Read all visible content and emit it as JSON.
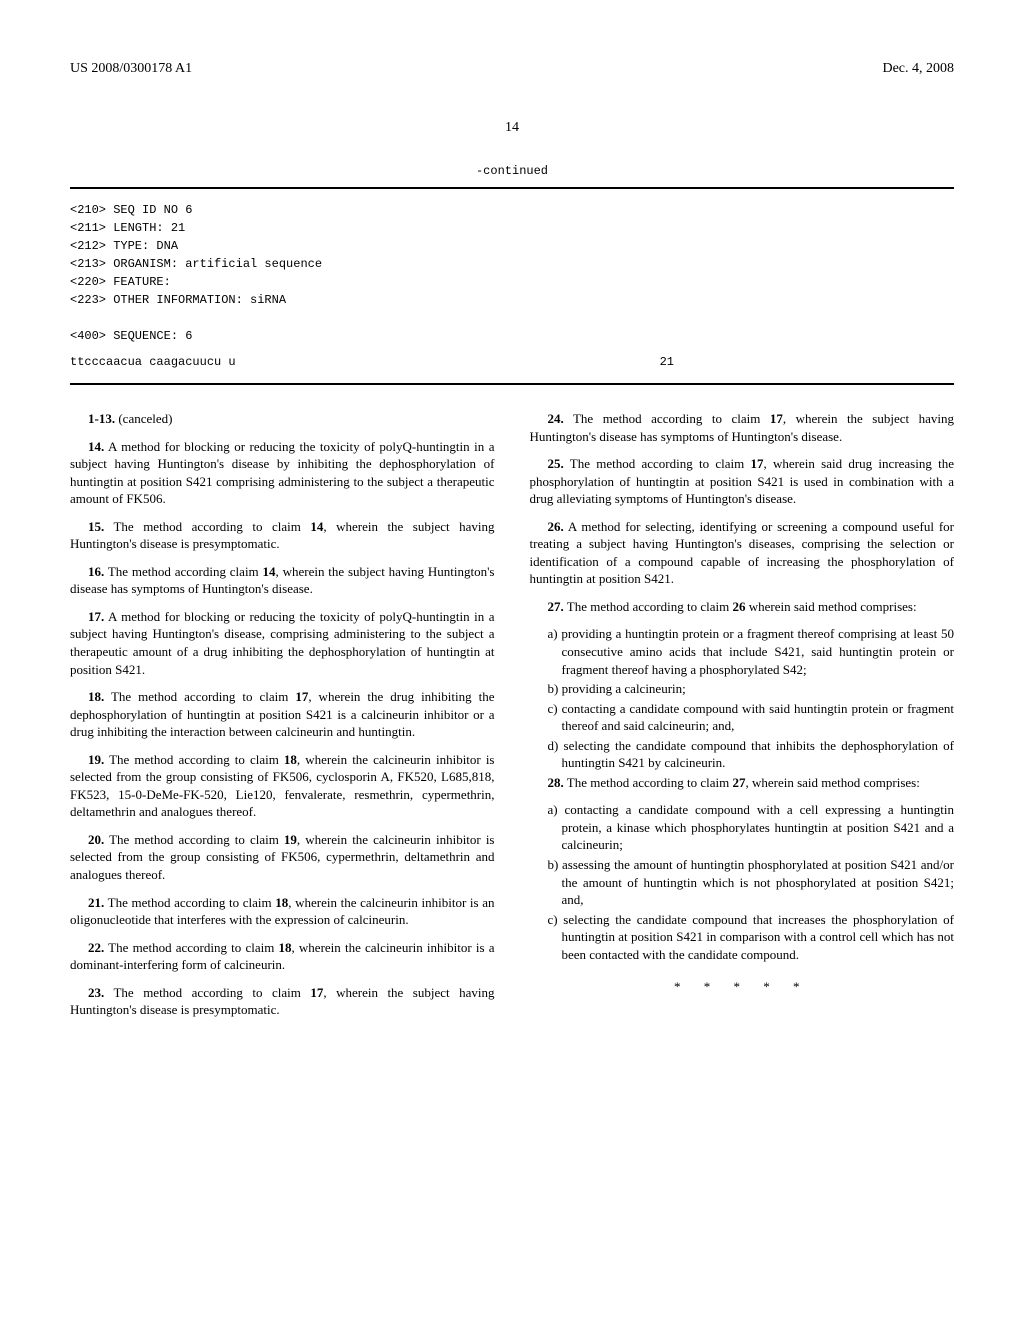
{
  "header": {
    "publication_number": "US 2008/0300178 A1",
    "date": "Dec. 4, 2008"
  },
  "page_number": "14",
  "continued_label": "-continued",
  "sequence": {
    "lines": [
      "<210> SEQ ID NO 6",
      "<211> LENGTH: 21",
      "<212> TYPE: DNA",
      "<213> ORGANISM: artificial sequence",
      "<220> FEATURE:",
      "<223> OTHER INFORMATION: siRNA",
      "",
      "<400> SEQUENCE: 6"
    ],
    "seq_text": "ttcccaacua caagacuucu u",
    "seq_length": "21"
  },
  "left_column": {
    "claims": [
      {
        "num": "1-13.",
        "text": " (canceled)"
      },
      {
        "num": "14.",
        "text": " A method for blocking or reducing the toxicity of polyQ-huntingtin in a subject having Huntington's disease by inhibiting the dephosphorylation of huntingtin at position S421 comprising administering to the subject a therapeutic amount of FK506."
      },
      {
        "num": "15.",
        "text": " The method according to claim 14, wherein the subject having Huntington's disease is presymptomatic."
      },
      {
        "num": "16.",
        "text": " The method according claim 14, wherein the subject having Huntington's disease has symptoms of Huntington's disease."
      },
      {
        "num": "17.",
        "text": " A method for blocking or reducing the toxicity of polyQ-huntingtin in a subject having Huntington's disease, comprising administering to the subject a therapeutic amount of a drug inhibiting the dephosphorylation of huntingtin at position S421."
      },
      {
        "num": "18.",
        "text": " The method according to claim 17, wherein the drug inhibiting the dephosphorylation of huntingtin at position S421 is a calcineurin inhibitor or a drug inhibiting the interaction between calcineurin and huntingtin."
      },
      {
        "num": "19.",
        "text": " The method according to claim 18, wherein the calcineurin inhibitor is selected from the group consisting of FK506, cyclosporin A, FK520, L685,818, FK523, 15-0-DeMe-FK-520, Lie120, fenvalerate, resmethrin, cypermethrin, deltamethrin and analogues thereof."
      },
      {
        "num": "20.",
        "text": " The method according to claim 19, wherein the calcineurin inhibitor is selected from the group consisting of FK506, cypermethrin, deltamethrin and analogues thereof."
      },
      {
        "num": "21.",
        "text": " The method according to claim 18, wherein the calcineurin inhibitor is an oligonucleotide that interferes with the expression of calcineurin."
      },
      {
        "num": "22.",
        "text": " The method according to claim 18, wherein the calcineurin inhibitor is a dominant-interfering form of calcineurin."
      },
      {
        "num": "23.",
        "text": " The method according to claim 17, wherein the subject having Huntington's disease is presymptomatic."
      }
    ]
  },
  "right_column": {
    "claims": [
      {
        "num": "24.",
        "text": " The method according to claim 17, wherein the subject having Huntington's disease has symptoms of Huntington's disease."
      },
      {
        "num": "25.",
        "text": " The method according to claim 17, wherein said drug increasing the phosphorylation of huntingtin at position S421 is used in combination with a drug alleviating symptoms of Huntington's disease."
      },
      {
        "num": "26.",
        "text": " A method for selecting, identifying or screening a compound useful for treating a subject having Huntington's diseases, comprising the selection or identification of a compound capable of increasing the phosphorylation of huntingtin at position S421."
      },
      {
        "num": "27.",
        "text": " The method according to claim 26 wherein said method comprises:"
      }
    ],
    "claim27_items": [
      "a) providing a huntingtin protein or a fragment thereof comprising at least 50 consecutive amino acids that include S421, said huntingtin protein or fragment thereof having a phosphorylated S42;",
      "b) providing a calcineurin;",
      "c) contacting a candidate compound with said huntingtin protein or fragment thereof and said calcineurin; and,",
      "d) selecting the candidate compound that inhibits the dephosphorylation of huntingtin S421 by calcineurin."
    ],
    "claim28": {
      "num": "28.",
      "text": " The method according to claim 27, wherein said method comprises:"
    },
    "claim28_items": [
      "a) contacting a candidate compound with a cell expressing a huntingtin protein, a kinase which phosphorylates huntingtin at position S421 and a calcineurin;",
      "b) assessing the amount of huntingtin phosphorylated at position S421 and/or the amount of huntingtin which is not phosphorylated at position S421; and,",
      "c) selecting the candidate compound that increases the phosphorylation of huntingtin at position S421 in comparison with a control cell which has not been contacted with the candidate compound."
    ]
  },
  "asterisks": "* * * * *"
}
